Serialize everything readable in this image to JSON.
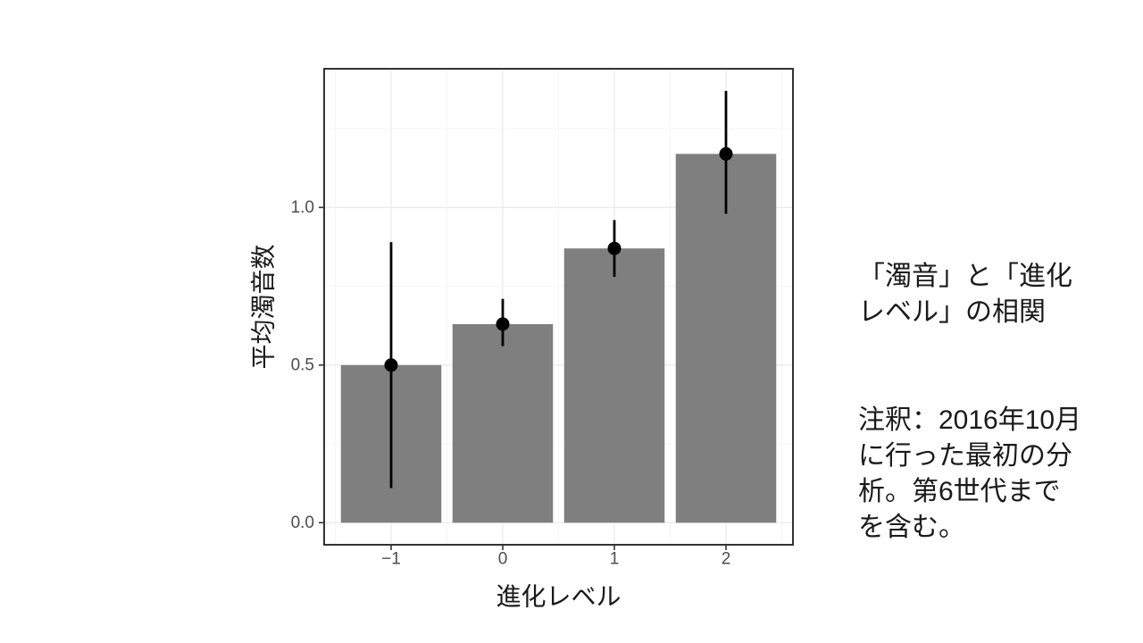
{
  "slide": {
    "background": "#ffffff",
    "text_color": "#1a1a1a",
    "caption_title": "「濁音」と「進化\nレベル」の相関",
    "caption_note": "注釈：2016年10月\nに行った最初の分\n析。第6世代まで\nを含む。"
  },
  "chart_data": {
    "type": "bar",
    "title": "",
    "xlabel": "進化レベル",
    "ylabel": "平均濁音数",
    "categories": [
      "−1",
      "0",
      "1",
      "2"
    ],
    "values": [
      0.5,
      0.63,
      0.87,
      1.17
    ],
    "error_low": [
      0.11,
      0.56,
      0.78,
      0.98
    ],
    "error_high": [
      0.89,
      0.71,
      0.96,
      1.37
    ],
    "point_values": [
      0.5,
      0.63,
      0.87,
      1.17
    ],
    "y_tick_labels": [
      "0.0",
      "0.5",
      "1.0"
    ],
    "y_tick_values": [
      0.0,
      0.5,
      1.0
    ],
    "y_minor_values": [
      0.25,
      0.75,
      1.25
    ],
    "ylim": [
      -0.07,
      1.44
    ],
    "grid": "major+minor horizontal and vertical, light gray on white, panel border",
    "legend": "none",
    "marker": "pointrange (filled circle with vertical error line, no caps)",
    "colors": {
      "bar_fill": "#7f7f7f",
      "point_and_error": "#000000",
      "panel_border": "#333333",
      "grid_major": "#ececec",
      "grid_minor": "#f5f5f5",
      "tick_mark": "#333333",
      "tick_label": "#4d4d4d",
      "axis_title": "#1a1a1a"
    }
  }
}
